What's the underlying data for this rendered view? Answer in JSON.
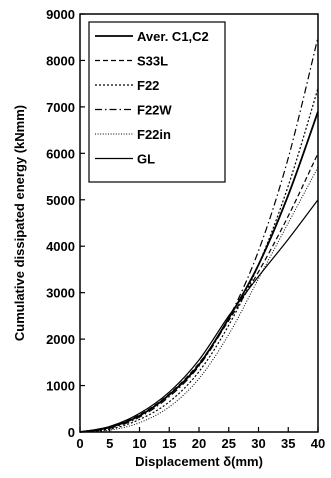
{
  "chart_data": {
    "type": "line",
    "title": "",
    "xlabel": "Displacement  δ(mm)",
    "ylabel": "Cumulative dissipated energy  (kNmm)",
    "xlim": [
      0,
      40
    ],
    "ylim": [
      0,
      9000
    ],
    "xticks": [
      0,
      5,
      10,
      15,
      20,
      25,
      30,
      35,
      40
    ],
    "yticks": [
      0,
      1000,
      2000,
      3000,
      4000,
      5000,
      6000,
      7000,
      8000,
      9000
    ],
    "grid": false,
    "legend_position": "top-left",
    "x": [
      0,
      5,
      10,
      15,
      20,
      25,
      30,
      35,
      40
    ],
    "series": [
      {
        "name": "Aver. C1,C2",
        "style": "solid",
        "width": 1.8,
        "values": [
          0,
          100,
          350,
          800,
          1450,
          2450,
          3600,
          5100,
          6900
        ]
      },
      {
        "name": "S33L",
        "style": "dashed",
        "width": 1.2,
        "values": [
          0,
          110,
          370,
          820,
          1480,
          2400,
          3450,
          4650,
          6000
        ]
      },
      {
        "name": "F22",
        "style": "dotted",
        "width": 1.2,
        "values": [
          0,
          60,
          270,
          650,
          1300,
          2300,
          3600,
          5300,
          7400
        ]
      },
      {
        "name": "F22W",
        "style": "dashdot",
        "width": 1.2,
        "values": [
          0,
          80,
          320,
          760,
          1420,
          2450,
          3900,
          5900,
          8500
        ]
      },
      {
        "name": "F22in",
        "style": "finedot",
        "width": 1.0,
        "values": [
          0,
          40,
          200,
          540,
          1150,
          2100,
          3300,
          4500,
          5700
        ]
      },
      {
        "name": "GL",
        "style": "solid",
        "width": 1.2,
        "values": [
          0,
          120,
          400,
          860,
          1550,
          2500,
          3350,
          4150,
          5000
        ]
      }
    ]
  }
}
